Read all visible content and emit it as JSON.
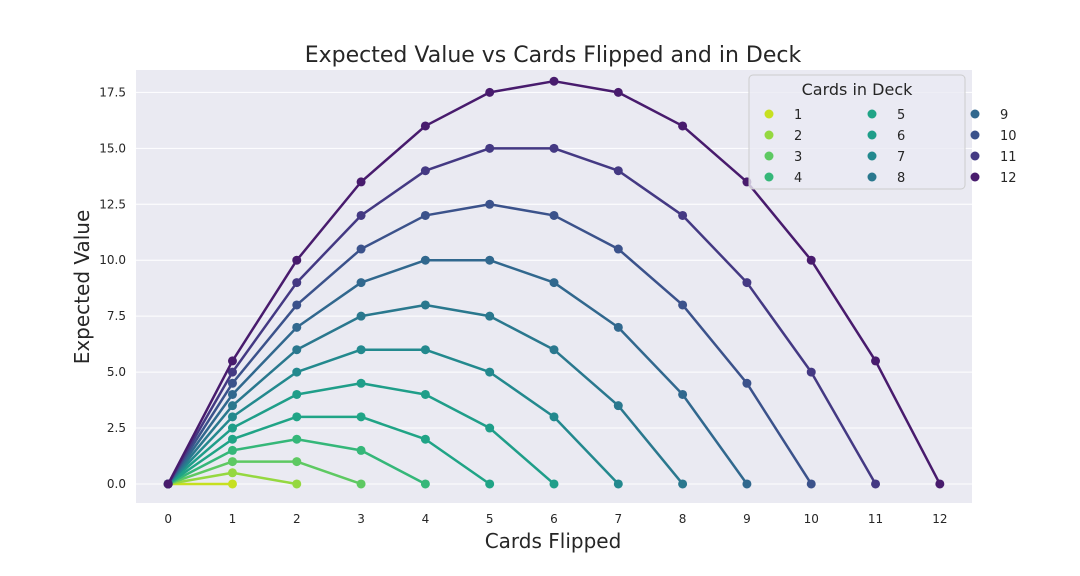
{
  "chart_data": {
    "type": "line",
    "title": "Expected Value vs Cards Flipped and in Deck",
    "xlabel": "Cards Flipped",
    "ylabel": "Expected Value",
    "xlim": [
      -0.5,
      12.5
    ],
    "ylim": [
      -0.85,
      18.5
    ],
    "x_ticks": [
      "0",
      "1",
      "2",
      "3",
      "4",
      "5",
      "6",
      "7",
      "8",
      "9",
      "10",
      "11",
      "12"
    ],
    "y_ticks": [
      "0.0",
      "2.5",
      "5.0",
      "7.5",
      "10.0",
      "12.5",
      "15.0",
      "17.5"
    ],
    "grid": true,
    "legend": {
      "title": "Cards in Deck",
      "placement": "top-right",
      "columns": 3
    },
    "series": [
      {
        "name": "1",
        "color": "#c7e020",
        "x": [
          0,
          1
        ],
        "values": [
          0,
          0
        ]
      },
      {
        "name": "2",
        "color": "#95d840",
        "x": [
          0,
          1,
          2
        ],
        "values": [
          0,
          0.5,
          0
        ]
      },
      {
        "name": "3",
        "color": "#5ec962",
        "x": [
          0,
          1,
          2,
          3
        ],
        "values": [
          0,
          1,
          1,
          0
        ]
      },
      {
        "name": "4",
        "color": "#35b779",
        "x": [
          0,
          1,
          2,
          3,
          4
        ],
        "values": [
          0,
          1.5,
          2,
          1.5,
          0
        ]
      },
      {
        "name": "5",
        "color": "#20a486",
        "x": [
          0,
          1,
          2,
          3,
          4,
          5
        ],
        "values": [
          0,
          2,
          3,
          3,
          2,
          0
        ]
      },
      {
        "name": "6",
        "color": "#1f9e89",
        "x": [
          0,
          1,
          2,
          3,
          4,
          5,
          6
        ],
        "values": [
          0,
          2.5,
          4,
          4.5,
          4,
          2.5,
          0
        ]
      },
      {
        "name": "7",
        "color": "#23898e",
        "x": [
          0,
          1,
          2,
          3,
          4,
          5,
          6,
          7
        ],
        "values": [
          0,
          3,
          5,
          6,
          6,
          5,
          3,
          0
        ]
      },
      {
        "name": "8",
        "color": "#2a788e",
        "x": [
          0,
          1,
          2,
          3,
          4,
          5,
          6,
          7,
          8
        ],
        "values": [
          0,
          3.5,
          6,
          7.5,
          8,
          7.5,
          6,
          3.5,
          0
        ]
      },
      {
        "name": "9",
        "color": "#31688e",
        "x": [
          0,
          1,
          2,
          3,
          4,
          5,
          6,
          7,
          8,
          9
        ],
        "values": [
          0,
          4,
          7,
          9,
          10,
          10,
          9,
          7,
          4,
          0
        ]
      },
      {
        "name": "10",
        "color": "#3b528b",
        "x": [
          0,
          1,
          2,
          3,
          4,
          5,
          6,
          7,
          8,
          9,
          10
        ],
        "values": [
          0,
          4.5,
          8,
          10.5,
          12,
          12.5,
          12,
          10.5,
          8,
          4.5,
          0
        ]
      },
      {
        "name": "11",
        "color": "#443983",
        "x": [
          0,
          1,
          2,
          3,
          4,
          5,
          6,
          7,
          8,
          9,
          10,
          11
        ],
        "values": [
          0,
          5,
          9,
          12,
          14,
          15,
          15,
          14,
          12,
          9,
          5,
          0
        ]
      },
      {
        "name": "12",
        "color": "#481b6d",
        "x": [
          0,
          1,
          2,
          3,
          4,
          5,
          6,
          7,
          8,
          9,
          10,
          11,
          12
        ],
        "values": [
          0,
          5.5,
          10,
          13.5,
          16,
          17.5,
          18,
          17.5,
          16,
          13.5,
          10,
          5.5,
          0
        ]
      }
    ]
  }
}
